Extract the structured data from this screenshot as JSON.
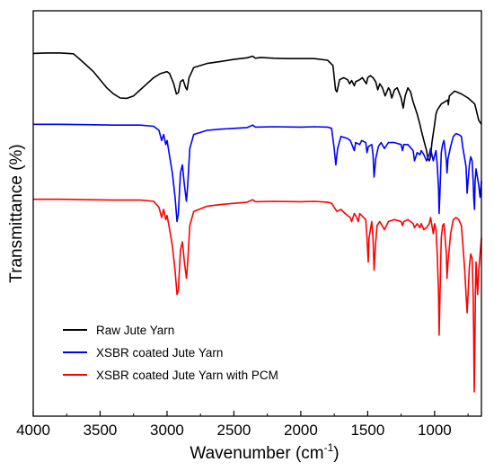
{
  "chart_data": {
    "type": "line",
    "xlabel": "Wavenumber (cm",
    "xlabel_superscript": "-1",
    "xlabel_suffix": ")",
    "ylabel": "Transmittance (%)",
    "xlim": [
      4000,
      650
    ],
    "x_reversed": true,
    "y_ticks_shown": false,
    "x_ticks": [
      4000,
      3500,
      3000,
      2500,
      2000,
      1500,
      1000
    ],
    "x_tick_labels": [
      "4000",
      "3500",
      "3000",
      "2500",
      "2000",
      "1500",
      "1000"
    ],
    "ylim": [
      0,
      100
    ],
    "grid": false,
    "legend_position": "lower-left",
    "series": [
      {
        "name": "Raw Jute Yarn",
        "color": "#000000",
        "points": [
          [
            4000,
            89.5
          ],
          [
            3900,
            89.6
          ],
          [
            3800,
            89.6
          ],
          [
            3700,
            89.4
          ],
          [
            3650,
            88.0
          ],
          [
            3600,
            86.5
          ],
          [
            3550,
            85.0
          ],
          [
            3500,
            83.0
          ],
          [
            3450,
            81.0
          ],
          [
            3400,
            79.5
          ],
          [
            3350,
            78.5
          ],
          [
            3300,
            78.4
          ],
          [
            3250,
            79.0
          ],
          [
            3200,
            80.5
          ],
          [
            3150,
            82.0
          ],
          [
            3100,
            83.5
          ],
          [
            3050,
            84.5
          ],
          [
            3000,
            85.0
          ],
          [
            2980,
            84.5
          ],
          [
            2950,
            82.0
          ],
          [
            2930,
            79.5
          ],
          [
            2915,
            79.8
          ],
          [
            2900,
            82.5
          ],
          [
            2880,
            83.0
          ],
          [
            2860,
            81.0
          ],
          [
            2850,
            80.5
          ],
          [
            2835,
            83.5
          ],
          [
            2800,
            86.0
          ],
          [
            2700,
            87.0
          ],
          [
            2600,
            87.5
          ],
          [
            2500,
            88.0
          ],
          [
            2400,
            88.4
          ],
          [
            2360,
            88.8
          ],
          [
            2340,
            88.3
          ],
          [
            2300,
            88.5
          ],
          [
            2200,
            88.3
          ],
          [
            2100,
            88.2
          ],
          [
            2000,
            88.2
          ],
          [
            1900,
            88.2
          ],
          [
            1800,
            87.8
          ],
          [
            1760,
            86.5
          ],
          [
            1740,
            80.5
          ],
          [
            1730,
            80.0
          ],
          [
            1710,
            83.0
          ],
          [
            1680,
            83.5
          ],
          [
            1650,
            83.0
          ],
          [
            1635,
            82.0
          ],
          [
            1620,
            82.8
          ],
          [
            1600,
            81.5
          ],
          [
            1590,
            82.5
          ],
          [
            1560,
            83.0
          ],
          [
            1540,
            83.5
          ],
          [
            1510,
            82.0
          ],
          [
            1500,
            83.5
          ],
          [
            1480,
            84.0
          ],
          [
            1460,
            83.5
          ],
          [
            1440,
            82.5
          ],
          [
            1425,
            80.5
          ],
          [
            1410,
            82.0
          ],
          [
            1390,
            81.0
          ],
          [
            1370,
            79.0
          ],
          [
            1345,
            81.0
          ],
          [
            1335,
            80.5
          ],
          [
            1320,
            78.5
          ],
          [
            1300,
            80.5
          ],
          [
            1280,
            81.0
          ],
          [
            1250,
            78.5
          ],
          [
            1235,
            76.0
          ],
          [
            1220,
            79.0
          ],
          [
            1200,
            81.0
          ],
          [
            1180,
            80.0
          ],
          [
            1160,
            77.5
          ],
          [
            1150,
            76.5
          ],
          [
            1130,
            74.5
          ],
          [
            1110,
            72.0
          ],
          [
            1100,
            70.5
          ],
          [
            1080,
            68.0
          ],
          [
            1060,
            65.5
          ],
          [
            1050,
            63.5
          ],
          [
            1040,
            63.0
          ],
          [
            1030,
            64.0
          ],
          [
            1020,
            67.5
          ],
          [
            1000,
            72.0
          ],
          [
            990,
            74.5
          ],
          [
            980,
            75.5
          ],
          [
            970,
            76.0
          ],
          [
            950,
            77.0
          ],
          [
            900,
            78.0
          ],
          [
            898,
            76.8
          ],
          [
            890,
            79.0
          ],
          [
            850,
            80.2
          ],
          [
            800,
            79.5
          ],
          [
            750,
            78.5
          ],
          [
            700,
            77.0
          ],
          [
            670,
            73.0
          ],
          [
            650,
            72.0
          ]
        ]
      },
      {
        "name": "XSBR coated Jute Yarn",
        "color": "#0000ff",
        "points": [
          [
            4000,
            72.0
          ],
          [
            3800,
            72.0
          ],
          [
            3600,
            71.9
          ],
          [
            3400,
            71.8
          ],
          [
            3200,
            71.8
          ],
          [
            3100,
            71.5
          ],
          [
            3060,
            70.5
          ],
          [
            3040,
            68.0
          ],
          [
            3025,
            69.5
          ],
          [
            3010,
            67.0
          ],
          [
            3000,
            68.0
          ],
          [
            2980,
            64.0
          ],
          [
            2960,
            60.0
          ],
          [
            2940,
            54.0
          ],
          [
            2925,
            48.0
          ],
          [
            2915,
            50.0
          ],
          [
            2900,
            60.0
          ],
          [
            2885,
            62.0
          ],
          [
            2870,
            57.0
          ],
          [
            2855,
            53.0
          ],
          [
            2845,
            57.0
          ],
          [
            2830,
            66.0
          ],
          [
            2800,
            69.5
          ],
          [
            2700,
            70.5
          ],
          [
            2600,
            70.8
          ],
          [
            2500,
            71.0
          ],
          [
            2400,
            71.2
          ],
          [
            2360,
            71.8
          ],
          [
            2340,
            71.3
          ],
          [
            2200,
            71.4
          ],
          [
            2000,
            71.3
          ],
          [
            1900,
            71.4
          ],
          [
            1800,
            71.3
          ],
          [
            1770,
            71.0
          ],
          [
            1750,
            66.0
          ],
          [
            1738,
            62.0
          ],
          [
            1725,
            66.0
          ],
          [
            1700,
            69.0
          ],
          [
            1650,
            68.5
          ],
          [
            1630,
            68.0
          ],
          [
            1600,
            65.5
          ],
          [
            1590,
            67.5
          ],
          [
            1560,
            67.0
          ],
          [
            1545,
            68.0
          ],
          [
            1515,
            67.5
          ],
          [
            1505,
            65.0
          ],
          [
            1495,
            66.5
          ],
          [
            1470,
            67.0
          ],
          [
            1460,
            64.5
          ],
          [
            1452,
            59.0
          ],
          [
            1440,
            63.5
          ],
          [
            1420,
            66.5
          ],
          [
            1400,
            67.5
          ],
          [
            1375,
            66.0
          ],
          [
            1345,
            67.5
          ],
          [
            1300,
            67.5
          ],
          [
            1250,
            67.0
          ],
          [
            1240,
            65.5
          ],
          [
            1230,
            67.0
          ],
          [
            1200,
            67.0
          ],
          [
            1160,
            65.5
          ],
          [
            1150,
            63.0
          ],
          [
            1130,
            65.0
          ],
          [
            1110,
            64.5
          ],
          [
            1100,
            65.5
          ],
          [
            1080,
            64.5
          ],
          [
            1060,
            63.0
          ],
          [
            1040,
            64.5
          ],
          [
            1030,
            66.0
          ],
          [
            1010,
            63.0
          ],
          [
            990,
            65.5
          ],
          [
            980,
            62.0
          ],
          [
            970,
            56.0
          ],
          [
            966,
            50.0
          ],
          [
            960,
            55.0
          ],
          [
            950,
            65.0
          ],
          [
            940,
            67.0
          ],
          [
            930,
            68.0
          ],
          [
            912,
            63.0
          ],
          [
            907,
            60.0
          ],
          [
            900,
            63.5
          ],
          [
            880,
            66.5
          ],
          [
            860,
            69.0
          ],
          [
            840,
            69.7
          ],
          [
            820,
            69.5
          ],
          [
            800,
            69.0
          ],
          [
            790,
            66.5
          ],
          [
            775,
            63.5
          ],
          [
            765,
            61.5
          ],
          [
            757,
            55.0
          ],
          [
            750,
            58.0
          ],
          [
            740,
            62.0
          ],
          [
            730,
            64.0
          ],
          [
            720,
            63.0
          ],
          [
            712,
            58.0
          ],
          [
            708,
            54.0
          ],
          [
            702,
            51.0
          ],
          [
            697,
            58.0
          ],
          [
            690,
            61.0
          ],
          [
            670,
            57.0
          ],
          [
            660,
            54.0
          ],
          [
            650,
            58.0
          ]
        ]
      },
      {
        "name": "XSBR coated Jute Yarn with PCM",
        "color": "#ff0000",
        "points": [
          [
            4000,
            53.5
          ],
          [
            3800,
            53.5
          ],
          [
            3600,
            53.4
          ],
          [
            3400,
            53.3
          ],
          [
            3200,
            53.3
          ],
          [
            3100,
            53.0
          ],
          [
            3060,
            51.5
          ],
          [
            3040,
            49.0
          ],
          [
            3025,
            51.0
          ],
          [
            3010,
            48.5
          ],
          [
            3000,
            49.5
          ],
          [
            2980,
            46.0
          ],
          [
            2960,
            42.0
          ],
          [
            2940,
            36.0
          ],
          [
            2925,
            30.0
          ],
          [
            2915,
            31.0
          ],
          [
            2900,
            41.0
          ],
          [
            2885,
            43.0
          ],
          [
            2870,
            38.0
          ],
          [
            2855,
            34.0
          ],
          [
            2845,
            38.0
          ],
          [
            2830,
            47.0
          ],
          [
            2800,
            50.5
          ],
          [
            2700,
            51.8
          ],
          [
            2600,
            52.2
          ],
          [
            2500,
            52.5
          ],
          [
            2400,
            52.8
          ],
          [
            2360,
            53.4
          ],
          [
            2340,
            52.9
          ],
          [
            2200,
            53.0
          ],
          [
            2000,
            52.9
          ],
          [
            1900,
            53.0
          ],
          [
            1800,
            52.8
          ],
          [
            1770,
            52.5
          ],
          [
            1750,
            51.5
          ],
          [
            1730,
            50.5
          ],
          [
            1700,
            51.0
          ],
          [
            1670,
            50.0
          ],
          [
            1650,
            49.5
          ],
          [
            1630,
            49.0
          ],
          [
            1620,
            48.0
          ],
          [
            1600,
            50.0
          ],
          [
            1590,
            49.5
          ],
          [
            1570,
            48.0
          ],
          [
            1560,
            50.0
          ],
          [
            1545,
            49.5
          ],
          [
            1515,
            48.5
          ],
          [
            1505,
            44.0
          ],
          [
            1496,
            38.0
          ],
          [
            1490,
            44.0
          ],
          [
            1470,
            48.0
          ],
          [
            1460,
            44.0
          ],
          [
            1452,
            36.0
          ],
          [
            1442,
            42.0
          ],
          [
            1430,
            47.0
          ],
          [
            1410,
            48.0
          ],
          [
            1375,
            46.0
          ],
          [
            1345,
            48.0
          ],
          [
            1300,
            48.5
          ],
          [
            1250,
            48.0
          ],
          [
            1240,
            47.0
          ],
          [
            1230,
            48.0
          ],
          [
            1200,
            48.5
          ],
          [
            1160,
            47.5
          ],
          [
            1150,
            46.5
          ],
          [
            1130,
            47.5
          ],
          [
            1110,
            46.5
          ],
          [
            1100,
            47.5
          ],
          [
            1080,
            46.0
          ],
          [
            1060,
            46.5
          ],
          [
            1040,
            47.5
          ],
          [
            1030,
            49.0
          ],
          [
            1010,
            45.0
          ],
          [
            1000,
            47.5
          ],
          [
            990,
            46.0
          ],
          [
            980,
            40.0
          ],
          [
            970,
            30.0
          ],
          [
            966,
            20.0
          ],
          [
            960,
            29.0
          ],
          [
            950,
            44.0
          ],
          [
            940,
            47.0
          ],
          [
            930,
            47.5
          ],
          [
            912,
            40.0
          ],
          [
            907,
            34.0
          ],
          [
            900,
            38.0
          ],
          [
            880,
            45.0
          ],
          [
            860,
            48.5
          ],
          [
            840,
            49.0
          ],
          [
            820,
            48.5
          ],
          [
            800,
            47.0
          ],
          [
            790,
            43.0
          ],
          [
            775,
            36.0
          ],
          [
            765,
            30.0
          ],
          [
            757,
            25.5
          ],
          [
            750,
            30.0
          ],
          [
            740,
            37.0
          ],
          [
            730,
            40.0
          ],
          [
            720,
            39.0
          ],
          [
            712,
            30.0
          ],
          [
            708,
            20.0
          ],
          [
            704,
            6.0
          ],
          [
            700,
            15.0
          ],
          [
            695,
            30.0
          ],
          [
            690,
            38.0
          ],
          [
            678,
            30.0
          ],
          [
            670,
            36.0
          ],
          [
            650,
            44.0
          ]
        ]
      }
    ]
  }
}
